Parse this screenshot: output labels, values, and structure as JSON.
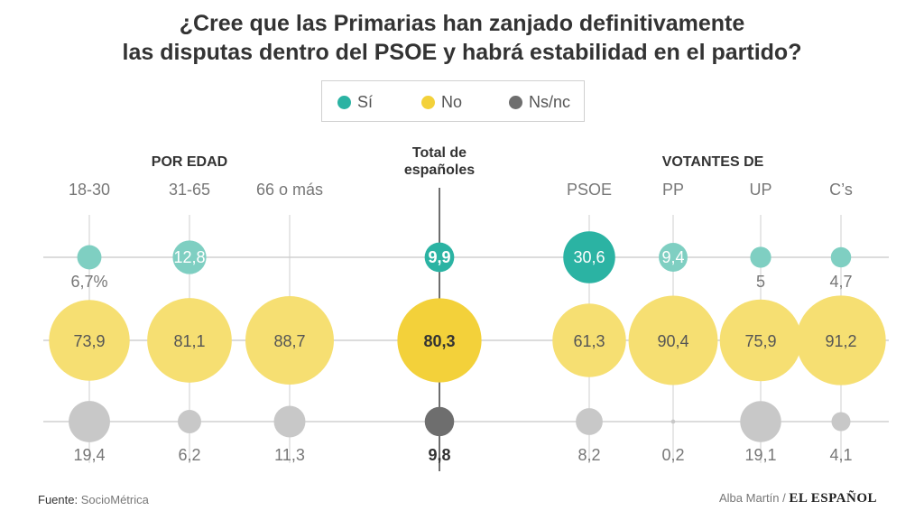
{
  "title": {
    "line1": "¿Cree que las Primarias han zanjado definitivamente",
    "line2": "las disputas dentro del PSOE y habrá estabilidad en el partido?"
  },
  "legend": [
    {
      "label": "Sí",
      "color": "#2bb3a3"
    },
    {
      "label": "No",
      "color": "#f3d13a"
    },
    {
      "label": "Ns/nc",
      "color": "#6e6e6e"
    }
  ],
  "groups": {
    "age": "POR EDAD",
    "total_line1": "Total de",
    "total_line2": "españoles",
    "voters": "VOTANTES DE"
  },
  "footer": {
    "source_prefix": "Fuente:",
    "source": "SocioMétrica",
    "author": "Alba Martín /",
    "brand": "EL ESPAÑOL"
  },
  "chart_data": {
    "type": "bubble",
    "title": "¿Cree que las Primarias han zanjado definitivamente las disputas dentro del PSOE y habrá estabilidad en el partido?",
    "series": [
      "Sí",
      "No",
      "Ns/nc"
    ],
    "columns": [
      {
        "name": "18-30",
        "group": "POR EDAD",
        "values": [
          6.7,
          73.9,
          19.4
        ],
        "labels": [
          "6,7%",
          "73,9",
          "19,4"
        ]
      },
      {
        "name": "31-65",
        "group": "POR EDAD",
        "values": [
          12.8,
          81.1,
          6.2
        ],
        "labels": [
          "12,8",
          "81,1",
          "6,2"
        ]
      },
      {
        "name": "66 o más",
        "group": "POR EDAD",
        "values": [
          0,
          88.7,
          11.3
        ],
        "labels": [
          "",
          "88,7",
          "11,3"
        ]
      },
      {
        "name": "Total de españoles",
        "group": "Total",
        "values": [
          9.9,
          80.3,
          9.8
        ],
        "labels": [
          "9,9",
          "80,3",
          "9,8"
        ],
        "highlight": true
      },
      {
        "name": "PSOE",
        "group": "VOTANTES DE",
        "values": [
          30.6,
          61.3,
          8.2
        ],
        "labels": [
          "30,6",
          "61,3",
          "8,2"
        ]
      },
      {
        "name": "PP",
        "group": "VOTANTES DE",
        "values": [
          9.4,
          90.4,
          0.2
        ],
        "labels": [
          "9,4",
          "90,4",
          "0,2"
        ]
      },
      {
        "name": "UP",
        "group": "VOTANTES DE",
        "values": [
          5,
          75.9,
          19.1
        ],
        "labels": [
          "5",
          "75,9",
          "19,1"
        ]
      },
      {
        "name": "C’s",
        "group": "VOTANTES DE",
        "values": [
          4.7,
          91.2,
          4.1
        ],
        "labels": [
          "4,7",
          "91,2",
          "4,1"
        ]
      }
    ],
    "colors": {
      "si": "#7fcfc2",
      "si_strong": "#2bb3a3",
      "no": "#f6df72",
      "no_strong": "#f3d13a",
      "nsnc": "#c8c8c8",
      "nsnc_strong": "#6e6e6e"
    }
  }
}
